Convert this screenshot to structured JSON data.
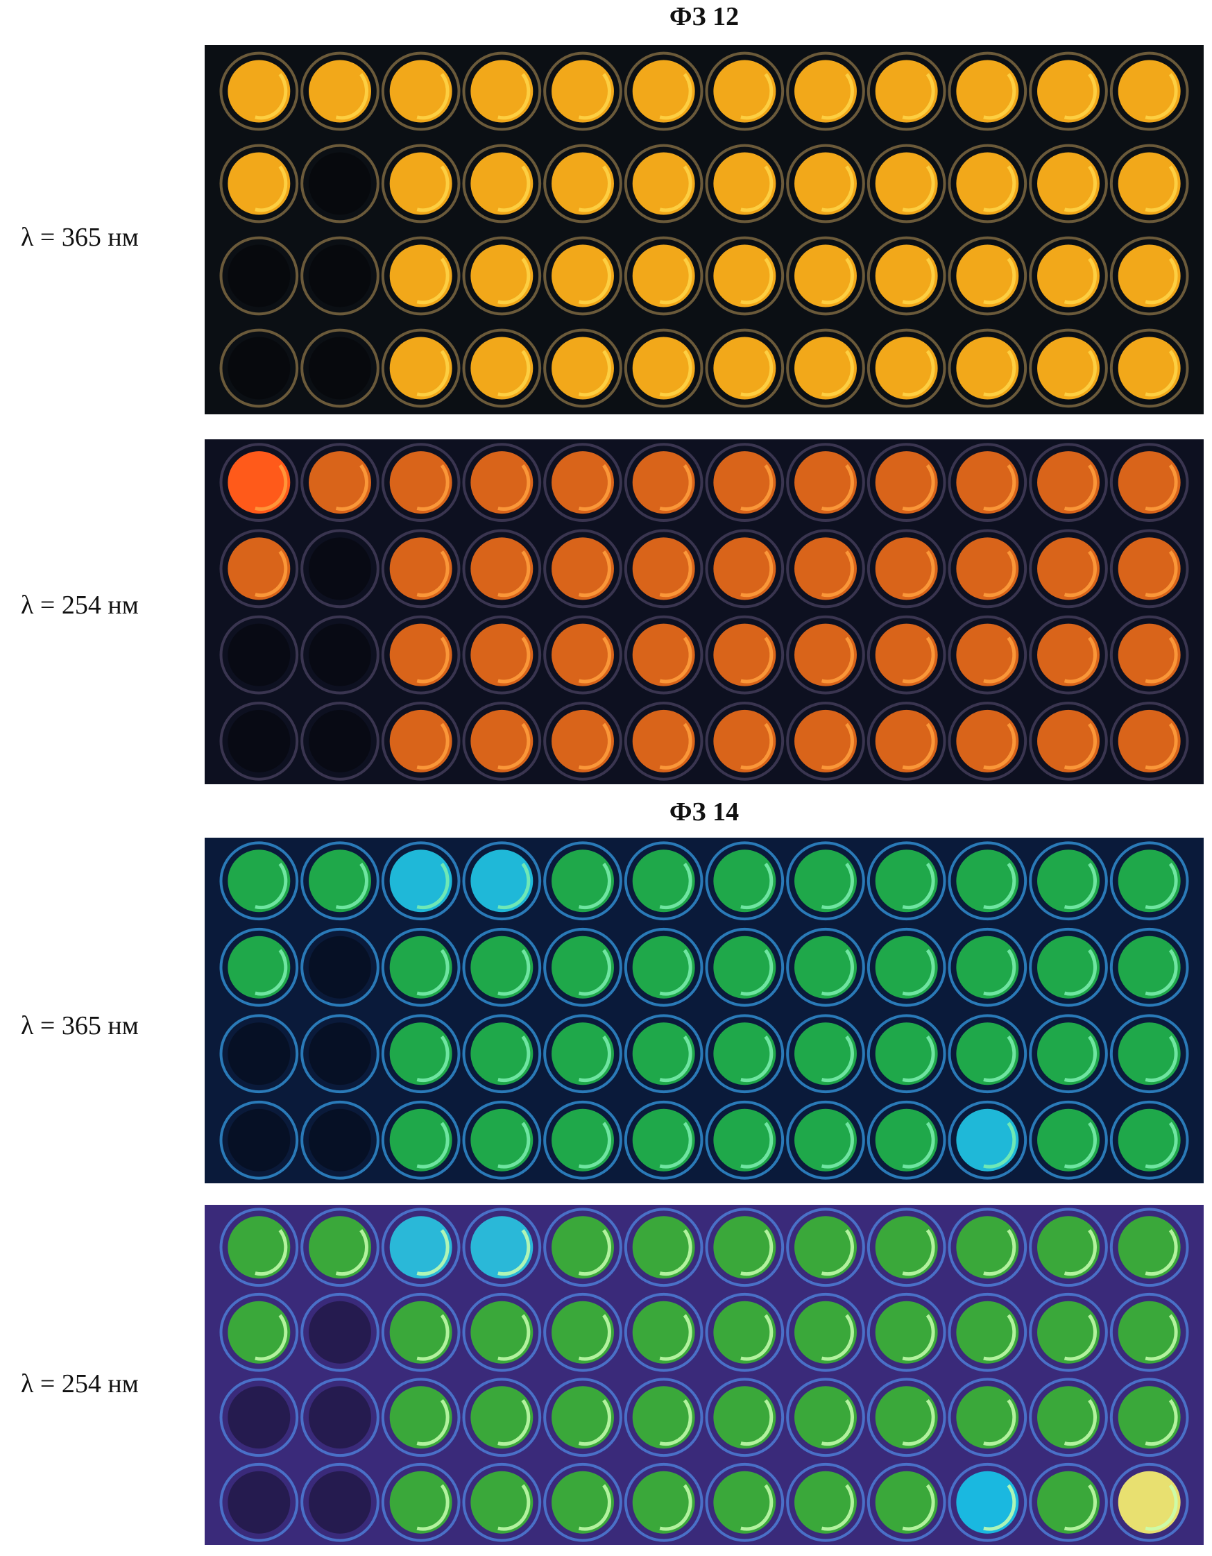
{
  "figure": {
    "groups": [
      {
        "title": "ФЗ 12",
        "panels": [
          {
            "label": "λ = 365 нм",
            "background": "#0b0f14",
            "well_fill": "#f2a81a",
            "well_ring": "#ffd64a",
            "rim": "#6b5a3a",
            "empty_wells": [
              [
                2,
                2
              ],
              [
                3,
                1
              ],
              [
                3,
                2
              ],
              [
                4,
                1
              ],
              [
                4,
                2
              ]
            ],
            "special_wells": []
          },
          {
            "label": "λ = 254 нм",
            "background": "#0d1020",
            "well_fill": "#d9641a",
            "well_ring": "#ffa040",
            "rim": "#3a3550",
            "empty_wells": [
              [
                2,
                2
              ],
              [
                3,
                1
              ],
              [
                3,
                2
              ],
              [
                4,
                1
              ],
              [
                4,
                2
              ]
            ],
            "special_wells": [
              {
                "row": 1,
                "col": 1,
                "color": "#ff5a1a"
              }
            ]
          }
        ]
      },
      {
        "title": "ФЗ 14",
        "panels": [
          {
            "label": "λ = 365 нм",
            "background": "#0a1a3a",
            "well_fill": "#1fa84a",
            "well_ring": "#7ef0b0",
            "rim": "#2a7ab8",
            "empty_wells": [
              [
                2,
                2
              ],
              [
                3,
                1
              ],
              [
                3,
                2
              ],
              [
                4,
                1
              ],
              [
                4,
                2
              ]
            ],
            "special_wells": [
              {
                "row": 1,
                "col": 3,
                "color": "#1fb8d8"
              },
              {
                "row": 1,
                "col": 4,
                "color": "#1fb8d8"
              },
              {
                "row": 4,
                "col": 10,
                "color": "#1fb8d8"
              }
            ]
          },
          {
            "label": "λ = 254 нм",
            "background": "#3a2a7a",
            "well_fill": "#3aa83a",
            "well_ring": "#c8ffb0",
            "rim": "#4a70c8",
            "empty_wells": [
              [
                2,
                2
              ],
              [
                3,
                1
              ],
              [
                3,
                2
              ],
              [
                4,
                1
              ],
              [
                4,
                2
              ]
            ],
            "special_wells": [
              {
                "row": 1,
                "col": 3,
                "color": "#2ab8d8"
              },
              {
                "row": 1,
                "col": 4,
                "color": "#2ab8d8"
              },
              {
                "row": 4,
                "col": 10,
                "color": "#1ab8e0"
              },
              {
                "row": 4,
                "col": 12,
                "color": "#e8e070"
              }
            ]
          }
        ]
      }
    ]
  }
}
